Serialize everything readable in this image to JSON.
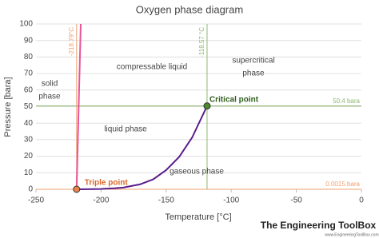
{
  "chart_data": {
    "type": "line",
    "title": "Oxygen phase diagram",
    "x_label": "Temperature [°C]",
    "y_label": "Pressure [bara]",
    "xlim": [
      -250,
      0
    ],
    "xticks": [
      -250,
      -200,
      -150,
      -100,
      -50,
      0
    ],
    "ylim": [
      0,
      100
    ],
    "yticks": [
      0,
      10,
      20,
      30,
      40,
      50,
      60,
      70,
      80,
      90,
      100
    ],
    "grid": true,
    "series": [
      {
        "color": "#e8559a",
        "x": [
          -218.79,
          -215.6
        ],
        "values": [
          0.0015,
          100
        ]
      },
      {
        "color": "#5b1e8c",
        "x": [
          -218.79,
          -210,
          -200,
          -190,
          -183,
          -170,
          -160,
          -150,
          -140,
          -130,
          -118.57
        ],
        "values": [
          0.0015,
          0.05,
          0.2,
          0.6,
          1.01,
          3.0,
          6.0,
          11.6,
          19.6,
          31.4,
          50.4
        ]
      }
    ],
    "reference_lines": [
      {
        "axis": "x",
        "value": -218.79,
        "label": "-218.79°C",
        "color": "#f0a070"
      },
      {
        "axis": "y",
        "value": 0.0015,
        "label": "0.0015 bara",
        "color": "#f0a070"
      },
      {
        "axis": "x",
        "value": -118.57,
        "label": "-118.57 °C",
        "color": "#8db870"
      },
      {
        "axis": "y",
        "value": 50.4,
        "label": "50.4 bara",
        "color": "#8db870"
      }
    ],
    "points": [
      {
        "label": "Triple point",
        "x": -218.79,
        "y": 0.0015,
        "color": "#e8834a",
        "text_color": "#d9682a"
      },
      {
        "label": "Critical point",
        "x": -118.57,
        "y": 50.4,
        "color": "#4a8a2a",
        "text_color": "#2e5e1a"
      }
    ],
    "annotations": [
      "solid",
      "phase",
      "compressable liquid",
      "supercritical",
      "phase",
      "liquid phase",
      "gaseous phase"
    ],
    "watermark": "The Engineering ToolBox",
    "watermark_url": "www.EngineeringToolBox.com"
  }
}
